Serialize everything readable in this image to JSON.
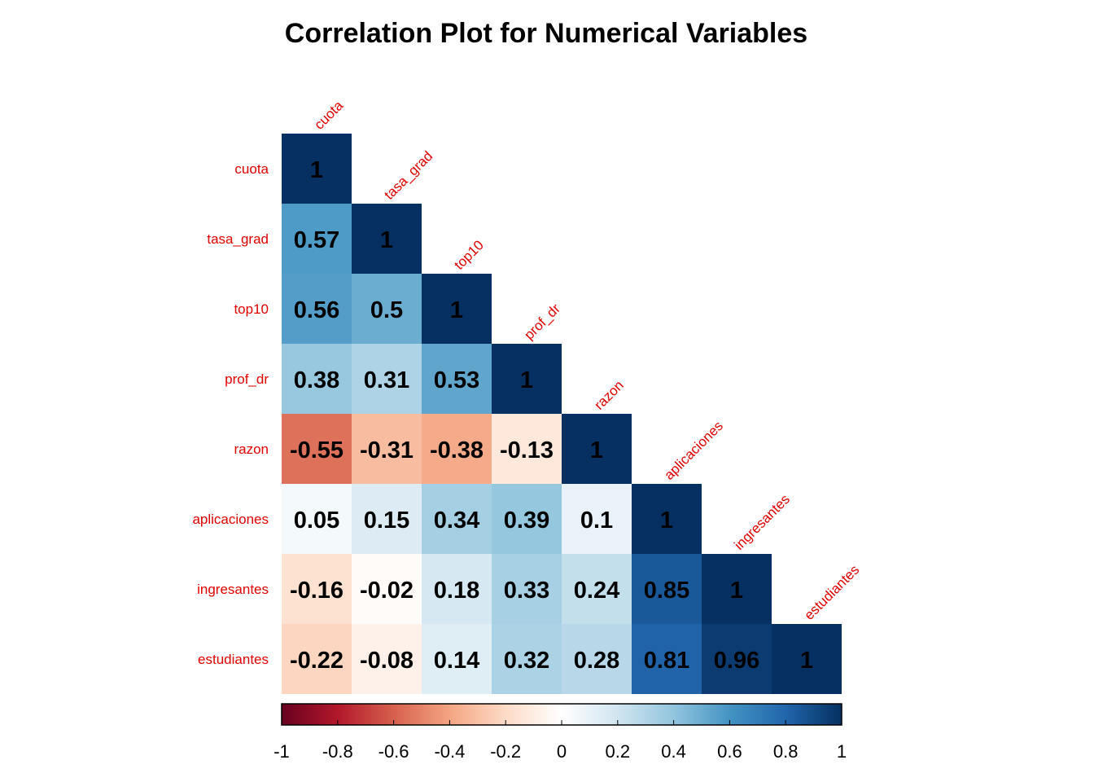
{
  "chart_data": {
    "type": "heatmap",
    "title": "Correlation Plot for Numerical Variables",
    "variables": [
      "cuota",
      "tasa_grad",
      "top10",
      "prof_dr",
      "razon",
      "aplicaciones",
      "ingresantes",
      "estudiantes"
    ],
    "matrix": [
      [
        1
      ],
      [
        0.57,
        1
      ],
      [
        0.56,
        0.5,
        1
      ],
      [
        0.38,
        0.31,
        0.53,
        1
      ],
      [
        -0.55,
        -0.31,
        -0.38,
        -0.13,
        1
      ],
      [
        0.05,
        0.15,
        0.34,
        0.39,
        0.1,
        1
      ],
      [
        -0.16,
        -0.02,
        0.18,
        0.33,
        0.24,
        0.85,
        1
      ],
      [
        -0.22,
        -0.08,
        0.14,
        0.32,
        0.28,
        0.81,
        0.96,
        1
      ]
    ],
    "display_values": [
      [
        "1"
      ],
      [
        "0.57",
        "1"
      ],
      [
        "0.56",
        "0.5",
        "1"
      ],
      [
        "0.38",
        "0.31",
        "0.53",
        "1"
      ],
      [
        "-0.55",
        "-0.31",
        "-0.38",
        "-0.13",
        "1"
      ],
      [
        "0.05",
        "0.15",
        "0.34",
        "0.39",
        "0.1",
        "1"
      ],
      [
        "-0.16",
        "-0.02",
        "0.18",
        "0.33",
        "0.24",
        "0.85",
        "1"
      ],
      [
        "-0.22",
        "-0.08",
        "0.14",
        "0.32",
        "0.28",
        "0.81",
        "0.96",
        "1"
      ]
    ],
    "layout": "lower-triangle",
    "colorbar": {
      "range": [
        -1,
        1
      ],
      "ticks": [
        "-1",
        "-0.8",
        "-0.6",
        "-0.4",
        "-0.2",
        "0",
        "0.2",
        "0.4",
        "0.6",
        "0.8",
        "1"
      ],
      "tick_values": [
        -1,
        -0.8,
        -0.6,
        -0.4,
        -0.2,
        0,
        0.2,
        0.4,
        0.6,
        0.8,
        1
      ],
      "position": "bottom"
    },
    "colors": {
      "negative_end": "#67001F",
      "positive_end": "#053061",
      "label_color": "#E00000",
      "value_text": "#000000"
    },
    "grid": false
  }
}
